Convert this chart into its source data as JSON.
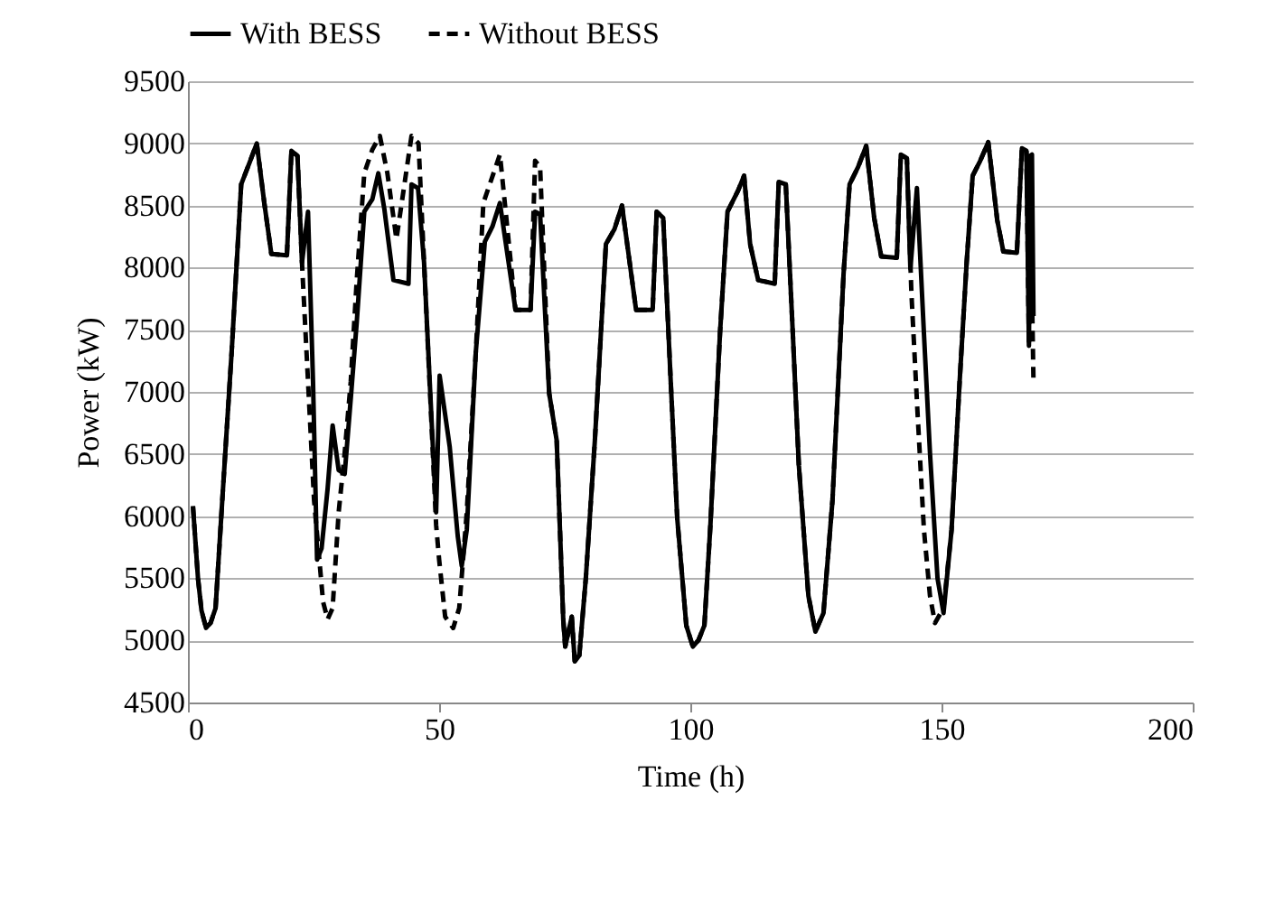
{
  "chart_data": {
    "type": "line",
    "xlabel": "Time (h)",
    "ylabel": "Power (kW)",
    "xlim": [
      0,
      200
    ],
    "xticks": [
      0,
      50,
      100,
      150,
      200
    ],
    "ylim": [
      4500,
      9500
    ],
    "yticks": [
      4500,
      5000,
      5500,
      6000,
      6500,
      7000,
      7500,
      8000,
      8500,
      9000,
      9500
    ],
    "grid": "y",
    "legend": "top",
    "marker": "none",
    "series": [
      {
        "name": "With BESS",
        "color": "#000000",
        "line_style": "solid",
        "x": [
          1,
          2,
          2.7,
          3.6,
          4.5,
          5.5,
          6.9,
          8.7,
          10.6,
          12.4,
          13.7,
          15.2,
          16.6,
          19.7,
          20.6,
          21.8,
          22.7,
          23.9,
          24.9,
          25.7,
          26.6,
          27.8,
          28.8,
          30,
          31.2,
          32.4,
          33.6,
          35.1,
          36.7,
          37.9,
          39.1,
          40.9,
          43.9,
          44.5,
          45.8,
          47,
          48.4,
          49.4,
          50.1,
          52.1,
          53.7,
          54.5,
          55.5,
          57.3,
          59.1,
          60.6,
          62.1,
          65.2,
          68.2,
          69.1,
          70.1,
          71.9,
          73.4,
          74.7,
          75.1,
          76.4,
          77,
          77.9,
          79.2,
          81,
          83.2,
          84.9,
          86.4,
          89.2,
          92.5,
          93.3,
          94.6,
          96.1,
          97.4,
          99.2,
          100.5,
          101.6,
          102.8,
          104,
          105.9,
          107.4,
          109.5,
          110.7,
          111.9,
          113.5,
          116.8,
          117.6,
          119,
          120.4,
          121.6,
          123.5,
          124.9,
          126.5,
          128.3,
          130.5,
          131.7,
          133.4,
          135,
          136.6,
          138,
          141.1,
          141.9,
          143.1,
          143.8,
          145.1,
          146.5,
          147.7,
          149.2,
          150.4,
          152,
          153.6,
          155,
          156.2,
          157.7,
          159.3,
          161.1,
          162.3,
          165,
          166,
          166.9,
          167.4,
          167.7,
          168,
          168.3
        ],
        "values": [
          6080,
          5500,
          5240,
          5100,
          5140,
          5260,
          6170,
          7320,
          8670,
          8860,
          9000,
          8520,
          8110,
          8100,
          8940,
          8900,
          8040,
          8450,
          7080,
          5650,
          5740,
          6220,
          6730,
          6370,
          6340,
          6940,
          7560,
          8450,
          8550,
          8760,
          8470,
          7900,
          7870,
          8670,
          8640,
          8040,
          6850,
          6030,
          7130,
          6560,
          5840,
          5600,
          5890,
          7320,
          8210,
          8330,
          8520,
          7660,
          7660,
          8450,
          8430,
          6990,
          6610,
          5170,
          4950,
          5190,
          4830,
          4880,
          5500,
          6610,
          8190,
          8310,
          8500,
          7660,
          7660,
          8450,
          8400,
          7080,
          5980,
          5120,
          4950,
          5000,
          5120,
          5930,
          7470,
          8450,
          8620,
          8740,
          8190,
          7900,
          7870,
          8690,
          8670,
          7470,
          6410,
          5360,
          5070,
          5220,
          6130,
          7950,
          8670,
          8810,
          8980,
          8400,
          8090,
          8080,
          8910,
          8880,
          7990,
          8640,
          7470,
          6510,
          5500,
          5220,
          5890,
          7080,
          8040,
          8740,
          8860,
          9010,
          8380,
          8130,
          8120,
          8960,
          8940,
          7370,
          8900,
          8910,
          7610
        ]
      },
      {
        "name": "Without BESS",
        "color": "#000000",
        "line_style": "dashed",
        "x": [
          1,
          2,
          2.7,
          3.6,
          4.5,
          5.5,
          6.9,
          8.7,
          10.6,
          12.4,
          13.7,
          15.2,
          16.6,
          19.7,
          20.6,
          21.8,
          22.7,
          25.1,
          26.9,
          27.8,
          28.8,
          30,
          31.2,
          32.4,
          33.6,
          35.1,
          36.7,
          38.2,
          39.7,
          41.5,
          44.5,
          45.9,
          47,
          49.4,
          50,
          51.2,
          52.8,
          54,
          55.5,
          57.3,
          58.8,
          60.4,
          62.1,
          63.3,
          65.2,
          68.2,
          69.1,
          70.1,
          71.9,
          73.4,
          74.7,
          75.1,
          76.4,
          77,
          77.9,
          79.2,
          81,
          83.2,
          84.9,
          86.4,
          89.2,
          92.5,
          93.3,
          94.6,
          96.1,
          97.4,
          99.2,
          100.5,
          101.6,
          102.8,
          104,
          105.9,
          107.4,
          109.5,
          110.7,
          111.9,
          113.5,
          116.8,
          117.6,
          119,
          120.4,
          121.6,
          123.5,
          124.9,
          126.5,
          128.3,
          130.5,
          131.7,
          133.4,
          135,
          136.6,
          138,
          141.1,
          141.9,
          143.1,
          144,
          145.2,
          146.5,
          147.7,
          148.7,
          150.4,
          152,
          153.6,
          155,
          156.2,
          157.7,
          159.3,
          161.1,
          162.3,
          165,
          166,
          166.9,
          167.4,
          167.7,
          168,
          168.3
        ],
        "values": [
          6080,
          5500,
          5240,
          5100,
          5140,
          5260,
          6170,
          7320,
          8670,
          8860,
          9000,
          8520,
          8110,
          8100,
          8940,
          8900,
          8040,
          6130,
          5310,
          5170,
          5260,
          6030,
          6510,
          7080,
          7900,
          8760,
          8950,
          9060,
          8760,
          8230,
          9060,
          9000,
          8040,
          5930,
          5650,
          5190,
          5100,
          5260,
          6030,
          7320,
          8520,
          8710,
          8910,
          8430,
          7660,
          7660,
          8860,
          8810,
          6990,
          6610,
          5170,
          4950,
          5190,
          4830,
          4880,
          5500,
          6610,
          8190,
          8310,
          8500,
          7660,
          7660,
          8450,
          8400,
          7080,
          5980,
          5120,
          4950,
          5000,
          5120,
          5930,
          7470,
          8450,
          8620,
          8740,
          8190,
          7900,
          7870,
          8690,
          8670,
          7470,
          6410,
          5360,
          5070,
          5220,
          6130,
          7950,
          8670,
          8810,
          8980,
          8400,
          8090,
          8080,
          8910,
          8880,
          7800,
          6850,
          5890,
          5360,
          5140,
          5260,
          5890,
          7080,
          8040,
          8740,
          8860,
          9010,
          8380,
          8130,
          8120,
          8960,
          8940,
          7370,
          8900,
          7800,
          7100
        ]
      }
    ]
  }
}
